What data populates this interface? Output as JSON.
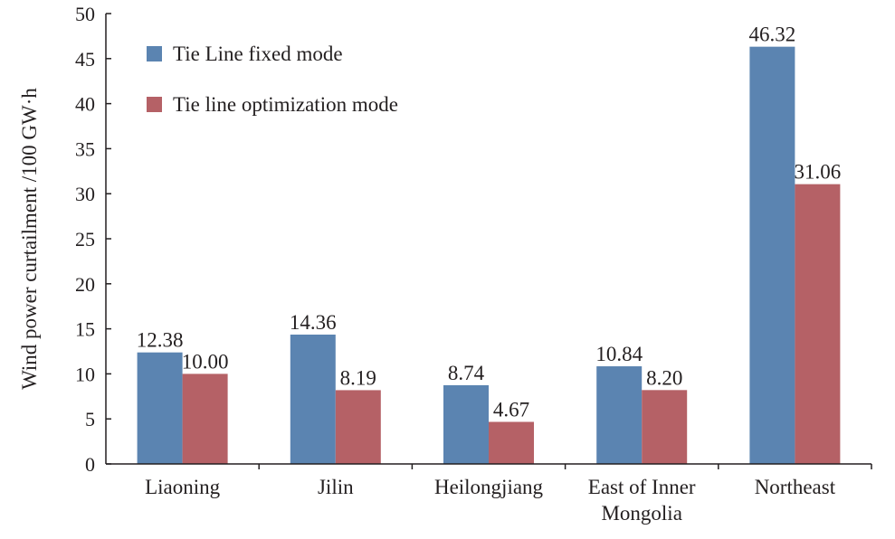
{
  "chart_data": {
    "type": "bar",
    "title": "",
    "xlabel": "",
    "ylabel": "Wind power curtailment /100 GW·h",
    "ylim": [
      0,
      50
    ],
    "yticks": [
      "0",
      "5",
      "10",
      "15",
      "20",
      "25",
      "30",
      "35",
      "40",
      "45",
      "50"
    ],
    "grid": false,
    "legend_position": "top-left",
    "categories": [
      [
        "Liaoning"
      ],
      [
        "Jilin"
      ],
      [
        "Heilongjiang"
      ],
      [
        "East of Inner",
        "Mongolia"
      ],
      [
        "Northeast"
      ]
    ],
    "series": [
      {
        "name": "Tie Line fixed mode",
        "color": "#5b84b1",
        "values": [
          12.38,
          14.36,
          8.74,
          10.84,
          46.32
        ],
        "labels": [
          "12.38",
          "14.36",
          "8.74",
          "10.84",
          "46.32"
        ]
      },
      {
        "name": "Tie line optimization mode",
        "color": "#b56166",
        "values": [
          10.0,
          8.19,
          4.67,
          8.2,
          31.06
        ],
        "labels": [
          "10.00",
          "8.19",
          "4.67",
          "8.20",
          "31.06"
        ]
      }
    ]
  }
}
